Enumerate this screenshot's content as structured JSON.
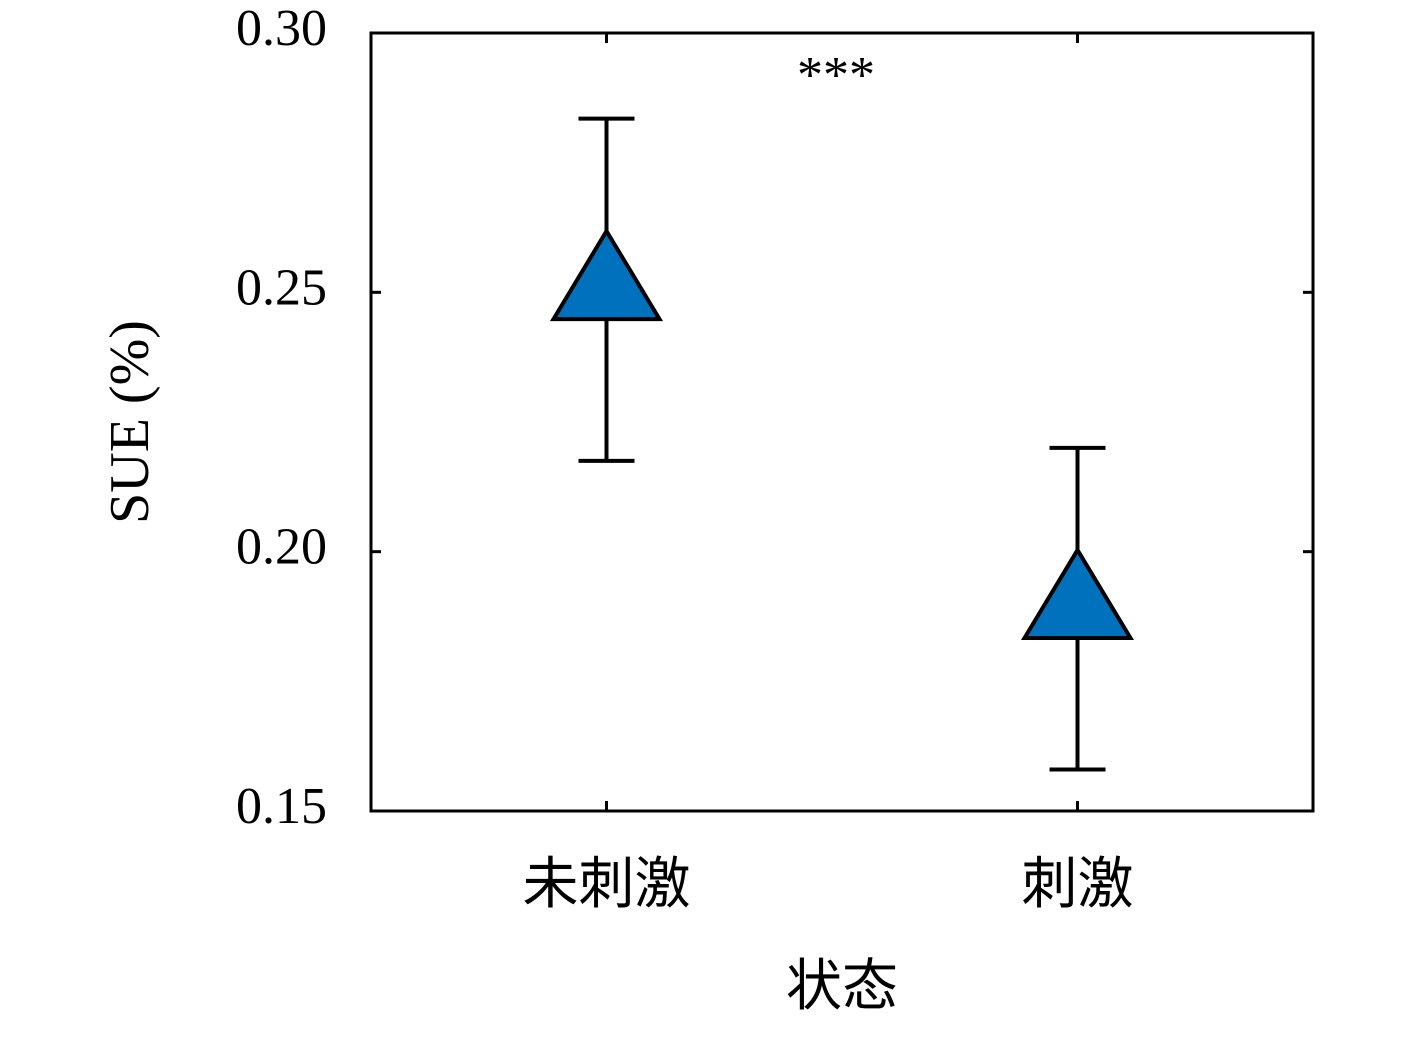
{
  "chart_data": {
    "type": "errorbar-scatter",
    "xlabel": "状态",
    "ylabel": "SUE (%)",
    "categories": [
      "未刺激",
      "刺激"
    ],
    "values": [
      0.2505,
      0.189
    ],
    "errors": [
      0.033,
      0.031
    ],
    "color": "#0072bd",
    "marker": "triangle",
    "ylim": [
      0.15,
      0.3
    ],
    "yticks": [
      {
        "value": 0.15,
        "label": "0.15"
      },
      0.25,
      {
        "value": 0.2,
        "label": "0.20"
      },
      {
        "value": 0.3,
        "label": "0.30"
      }
    ],
    "annotation": "***",
    "grid": false
  }
}
